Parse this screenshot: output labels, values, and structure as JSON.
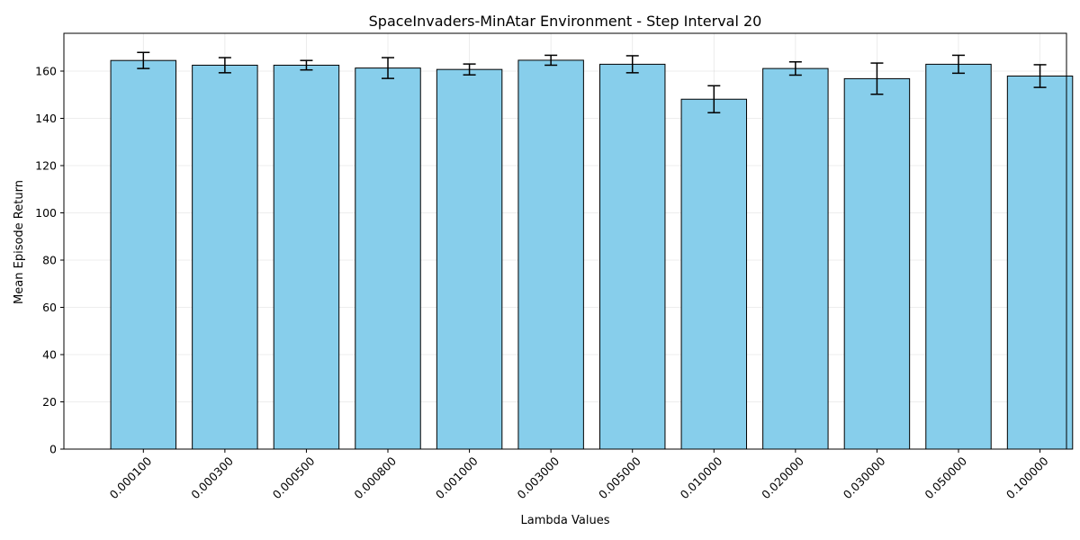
{
  "chart_data": {
    "type": "bar",
    "title": "SpaceInvaders-MinAtar Environment - Step Interval 20",
    "xlabel": "Lambda Values",
    "ylabel": "Mean Episode Return",
    "categories": [
      "0.000100",
      "0.000300",
      "0.000500",
      "0.000800",
      "0.001000",
      "0.003000",
      "0.005000",
      "0.010000",
      "0.020000",
      "0.030000",
      "0.050000",
      "0.100000"
    ],
    "values": [
      164.5,
      162.5,
      162.5,
      161.3,
      160.7,
      164.6,
      162.9,
      148.1,
      161.1,
      156.8,
      162.9,
      157.9
    ],
    "errors": [
      3.4,
      3.2,
      2.0,
      4.4,
      2.3,
      2.1,
      3.6,
      5.7,
      2.8,
      6.6,
      3.8,
      4.8
    ],
    "ylim": [
      0,
      176
    ],
    "yticks": [
      0,
      20,
      40,
      60,
      80,
      100,
      120,
      140,
      160
    ],
    "grid": true,
    "bar_color": "#87CEEB",
    "edge_color": "#000000"
  }
}
